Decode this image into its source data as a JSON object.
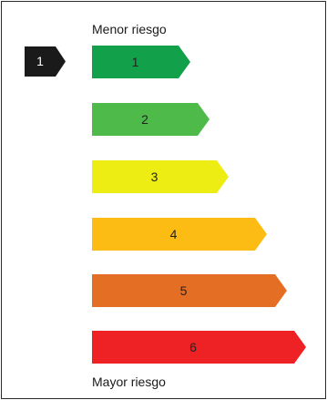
{
  "labels": {
    "top": "Menor riesgo",
    "bottom": "Mayor riesgo"
  },
  "indicator": {
    "value": "1",
    "color": "#1a1a1a"
  },
  "scale": [
    {
      "label": "1",
      "color": "#13a04b"
    },
    {
      "label": "2",
      "color": "#4dba49"
    },
    {
      "label": "3",
      "color": "#eded14"
    },
    {
      "label": "4",
      "color": "#fcbc14"
    },
    {
      "label": "5",
      "color": "#e56e25"
    },
    {
      "label": "6",
      "color": "#ee2124"
    }
  ]
}
